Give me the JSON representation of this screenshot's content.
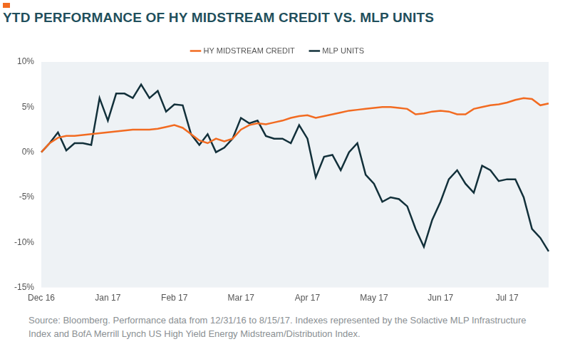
{
  "chart_data": {
    "type": "line",
    "title": "YTD PERFORMANCE OF HY MIDSTREAM CREDIT VS. MLP UNITS",
    "note": "Source: Bloomberg. Performance data from 12/31/16 to 8/15/17. Indexes represented by the Solactive MLP Infrastructure Index and BofA Merrill Lynch US High Yield Energy Midstream/Distribution Index.",
    "categories": [
      "Dec 16",
      null,
      null,
      null,
      null,
      null,
      null,
      null,
      "Jan 17",
      null,
      null,
      null,
      null,
      null,
      null,
      null,
      "Feb 17",
      null,
      null,
      null,
      null,
      null,
      null,
      null,
      "Mar 17",
      null,
      null,
      null,
      null,
      null,
      null,
      null,
      "Apr 17",
      null,
      null,
      null,
      null,
      null,
      null,
      null,
      "May 17",
      null,
      null,
      null,
      null,
      null,
      null,
      null,
      "Jun 17",
      null,
      null,
      null,
      null,
      null,
      null,
      null,
      "Jul 17",
      null,
      null,
      null,
      null,
      null
    ],
    "series": [
      {
        "name": "HY MIDSTREAM CREDIT",
        "color": "#f26b21",
        "values": [
          0,
          1.0,
          1.6,
          1.8,
          1.8,
          1.9,
          2.0,
          2.1,
          2.2,
          2.3,
          2.4,
          2.5,
          2.5,
          2.5,
          2.6,
          2.8,
          3.0,
          2.7,
          2.0,
          1.3,
          1.0,
          1.5,
          1.2,
          1.5,
          2.5,
          3.0,
          3.2,
          3.1,
          3.3,
          3.5,
          3.8,
          4.0,
          4.1,
          3.8,
          4.0,
          4.2,
          4.4,
          4.6,
          4.7,
          4.8,
          4.9,
          5.0,
          5.0,
          4.9,
          4.8,
          4.2,
          4.3,
          4.5,
          4.6,
          4.5,
          4.2,
          4.2,
          4.8,
          5.0,
          5.2,
          5.3,
          5.5,
          5.8,
          6.0,
          5.9,
          5.2,
          5.4
        ]
      },
      {
        "name": "MLP UNITS",
        "color": "#12303a",
        "values": [
          0,
          1.0,
          2.2,
          0.2,
          1.0,
          1.0,
          0.8,
          6.0,
          3.5,
          6.5,
          6.5,
          6.0,
          7.5,
          6.0,
          6.8,
          4.5,
          5.3,
          5.2,
          2.0,
          0.8,
          2.0,
          0.0,
          0.5,
          1.5,
          3.8,
          3.2,
          3.5,
          1.8,
          1.5,
          1.5,
          1.0,
          3.0,
          1.5,
          -2.8,
          -0.5,
          -0.3,
          -2.0,
          0.0,
          1.0,
          -2.5,
          -3.5,
          -5.5,
          -5.0,
          -5.2,
          -6.0,
          -8.5,
          -10.5,
          -7.5,
          -5.5,
          -3.0,
          -2.0,
          -3.5,
          -4.5,
          -1.5,
          -2.0,
          -3.2,
          -3.0,
          -3.0,
          -5.0,
          -8.5,
          -9.5,
          -11.0
        ]
      }
    ],
    "ylim": [
      -15,
      10
    ],
    "yticks": [
      {
        "value": -15,
        "label": "-15%"
      },
      {
        "value": -10,
        "label": "-10%"
      },
      {
        "value": -5,
        "label": "-5%"
      },
      {
        "value": 0,
        "label": "0%"
      },
      {
        "value": 5,
        "label": "5%"
      },
      {
        "value": 10,
        "label": "10%"
      }
    ],
    "grid": false,
    "legend": "top"
  }
}
